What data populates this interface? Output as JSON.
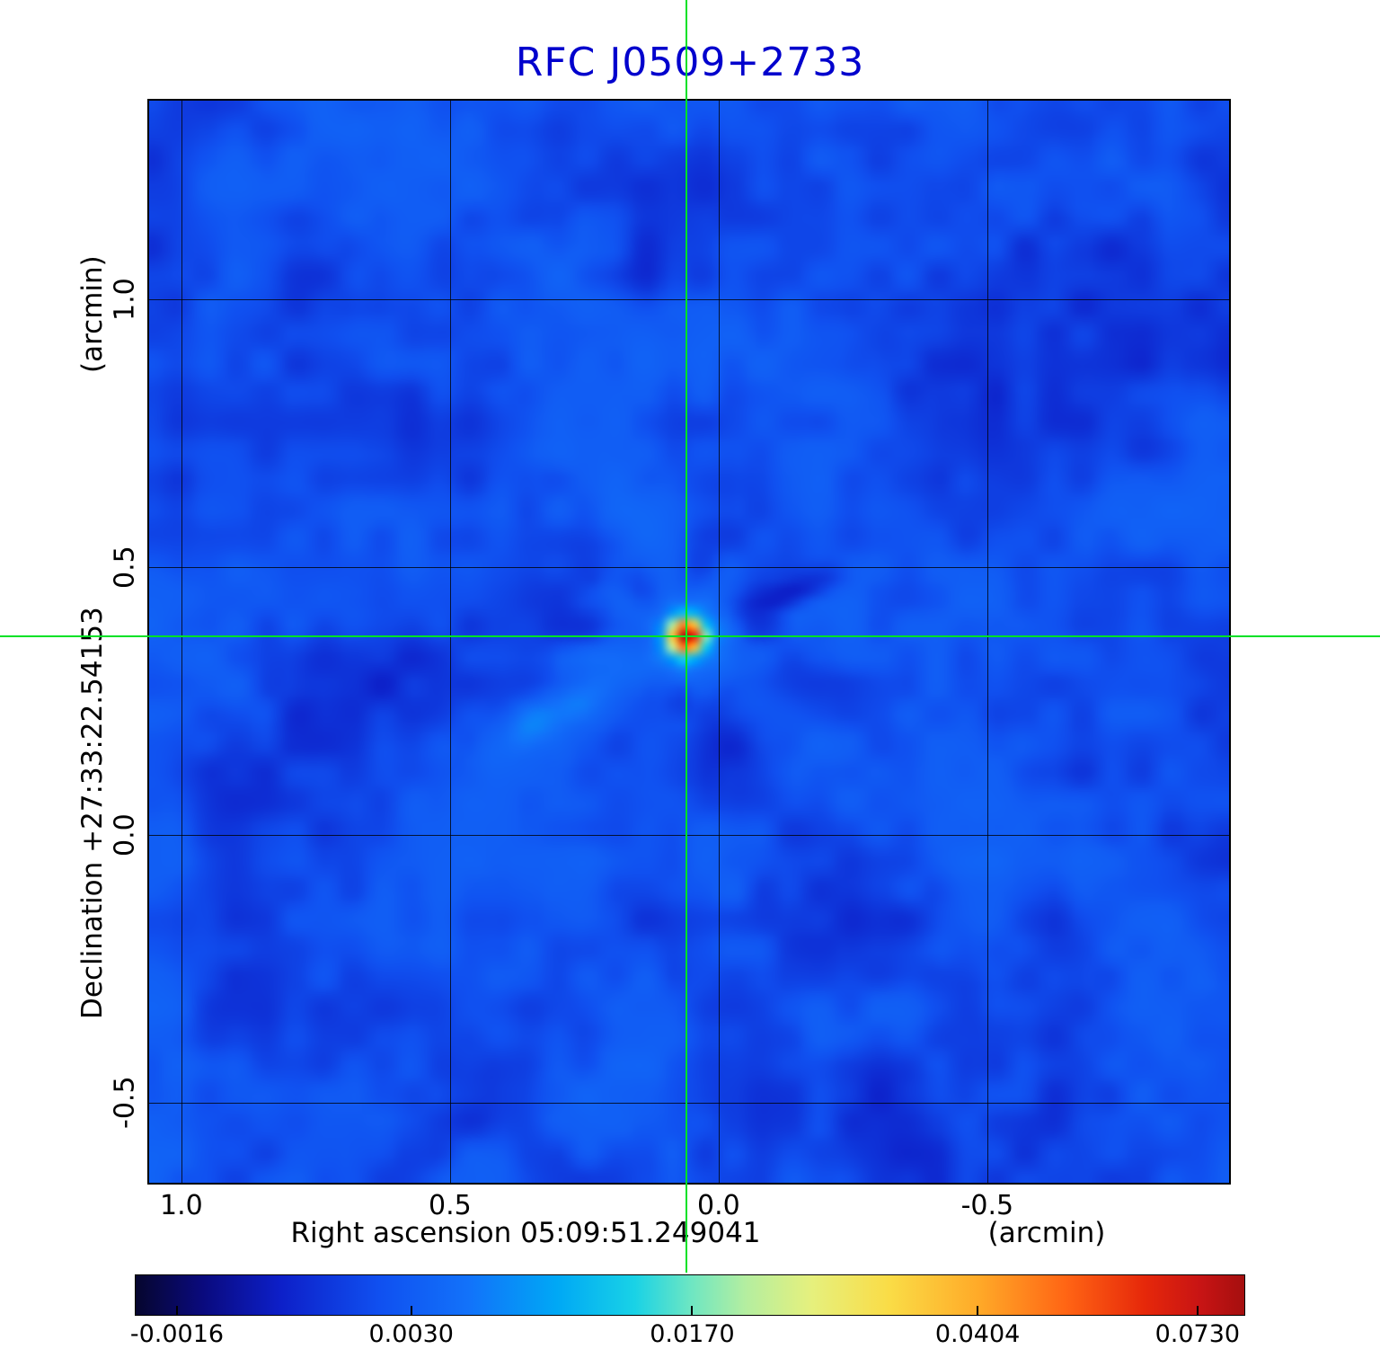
{
  "title": "RFC J0509+2733",
  "colors": {
    "title": "#0000cd",
    "crosshair": "#00e226",
    "axis_text": "#000000",
    "background": "#ffffff"
  },
  "axes": {
    "x": {
      "label": "Right ascension  05:09:51.249041",
      "unit": "(arcmin)"
    },
    "y": {
      "label": "Declination  +27:33:22.54153",
      "unit": "(arcmin)"
    }
  },
  "chart_data": {
    "type": "heatmap",
    "title": "RFC J0509+2733",
    "xlabel": "Right ascension 05:09:51.249041 (arcmin)",
    "ylabel": "Declination +27:33:22.54153 (arcmin)",
    "xlim": [
      1.06,
      -0.95
    ],
    "ylim": [
      1.37,
      -0.65
    ],
    "x_tick_values": [
      1.0,
      0.5,
      0.0,
      -0.5
    ],
    "x_tick_labels": [
      "1.0",
      "0.5",
      "0.0",
      "-0.5"
    ],
    "y_tick_values": [
      1.0,
      0.5,
      0.0,
      -0.5
    ],
    "y_tick_labels": [
      "1.0",
      "0.5",
      "0.0",
      "-0.5"
    ],
    "grid": true,
    "legend": "colorbar-bottom",
    "colorbar_tick_labels": [
      "-0.0016",
      "0.0030",
      "0.0170",
      "0.0404",
      "0.0730"
    ],
    "colorbar_tick_values": [
      -0.0016,
      0.003,
      0.017,
      0.0404,
      0.073
    ],
    "colorbar_tick_positions": [
      0.038,
      0.249,
      0.502,
      0.759,
      0.957
    ],
    "value_range": [
      -0.003,
      0.08
    ],
    "peak_value": 0.073,
    "background_level": 0.0024,
    "value_to_t_anchors": [
      [
        -0.003,
        0.0
      ],
      [
        -0.0016,
        0.038
      ],
      [
        0.003,
        0.249
      ],
      [
        0.017,
        0.502
      ],
      [
        0.0404,
        0.759
      ],
      [
        0.073,
        0.957
      ],
      [
        0.08,
        1.0
      ]
    ],
    "colormap_stops": [
      [
        0.0,
        "#06062e"
      ],
      [
        0.06,
        "#0a0a7d"
      ],
      [
        0.13,
        "#0d1fc8"
      ],
      [
        0.22,
        "#1050f0"
      ],
      [
        0.3,
        "#1272fa"
      ],
      [
        0.38,
        "#00a8f5"
      ],
      [
        0.45,
        "#19d2e6"
      ],
      [
        0.5,
        "#6ce6c3"
      ],
      [
        0.55,
        "#b4eea0"
      ],
      [
        0.61,
        "#e6f07d"
      ],
      [
        0.68,
        "#fadc46"
      ],
      [
        0.76,
        "#ffaa28"
      ],
      [
        0.84,
        "#ff6414"
      ],
      [
        0.91,
        "#e6280a"
      ],
      [
        0.96,
        "#c81414"
      ],
      [
        1.0,
        "#a50f0f"
      ]
    ],
    "source": {
      "ra_offset_arcmin": 0.06,
      "dec_offset_arcmin": 0.37,
      "core_amp": 0.082,
      "core_sigma": 0.0085,
      "halo_amp": 0.011,
      "halo_sigma": 0.021
    },
    "noise": {
      "seed": 1337,
      "base": 0.0006,
      "amp": 0.0036,
      "coarse_cells": 13,
      "fine_cells": 37,
      "coarse_weight": 0.62
    },
    "features": [
      {
        "angle_deg": -22,
        "r0": 0.035,
        "r1": 0.17,
        "width": 0.011,
        "amp": -0.0036
      },
      {
        "angle_deg": -5,
        "r0": 0.04,
        "r1": 0.1,
        "width": 0.009,
        "amp": -0.0022
      },
      {
        "angle_deg": 150,
        "r0": 0.03,
        "r1": 0.24,
        "width": 0.012,
        "amp": 0.0045
      },
      {
        "angle_deg": 168,
        "r0": 0.03,
        "r1": 0.13,
        "width": 0.01,
        "amp": 0.0028
      },
      {
        "angle_deg": -150,
        "r0": 0.03,
        "r1": 0.1,
        "width": 0.01,
        "amp": 0.0022
      },
      {
        "angle_deg": 95,
        "r0": 0.03,
        "r1": 0.08,
        "width": 0.009,
        "amp": -0.002
      }
    ]
  }
}
